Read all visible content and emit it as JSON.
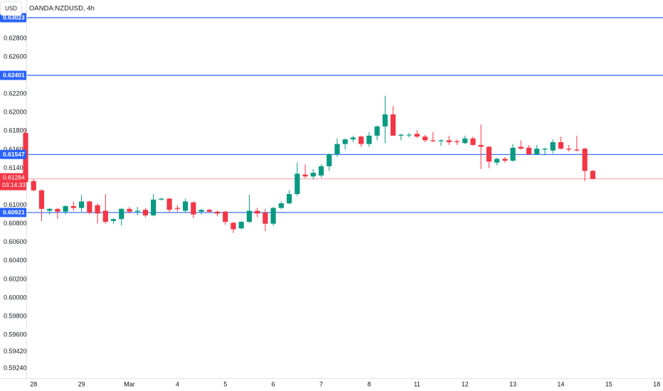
{
  "chart_data": {
    "type": "candlestick",
    "title": "OANDA:NZDUSD, 4h",
    "currency": "USD",
    "categories": [
      null,
      "28",
      null,
      null,
      null,
      null,
      null,
      "29",
      null,
      null,
      null,
      null,
      null,
      "Mar",
      null,
      null,
      null,
      null,
      null,
      "4",
      null,
      null,
      null,
      null,
      null,
      "5",
      null,
      null,
      null,
      null,
      null,
      "6",
      null,
      null,
      null,
      null,
      null,
      "7",
      null,
      null,
      null,
      null,
      null,
      "8",
      null,
      null,
      null,
      null,
      null,
      "11",
      null,
      null,
      null,
      null,
      null,
      "12",
      null,
      null,
      null,
      null,
      null,
      "13",
      null,
      null,
      null,
      null,
      null,
      "14",
      null,
      null,
      null,
      null,
      null,
      "15",
      null,
      null,
      null,
      null,
      null,
      "18"
    ],
    "open": [
      0.6178,
      0.6126,
      0.6116,
      0.6094,
      0.6096,
      0.6093,
      0.6099,
      0.6097,
      0.6104,
      0.61,
      0.6094,
      0.6083,
      0.6085,
      0.6096,
      0.6093,
      0.6095,
      0.6089,
      0.6106,
      0.6107,
      0.6097,
      0.6094,
      0.6103,
      0.6093,
      0.6095,
      0.6093,
      0.6093,
      0.6081,
      0.6075,
      0.6082,
      0.6094,
      0.6092,
      0.608,
      0.6097,
      0.6102,
      0.6112,
      0.6133,
      0.6131,
      0.6132,
      0.6142,
      0.6155,
      0.6166,
      0.6171,
      0.6174,
      0.6166,
      0.6175,
      0.6185,
      0.6198,
      0.6175,
      0.6176,
      0.6177,
      0.6174,
      0.617,
      0.6169,
      0.617,
      0.6169,
      0.6167,
      0.6172,
      0.6165,
      0.6163,
      0.6146,
      0.615,
      0.6148,
      0.6163,
      0.6162,
      0.6155,
      0.616,
      0.6159,
      0.6168,
      0.6161,
      0.616,
      0.6161,
      0.6137,
      null,
      null,
      null,
      null,
      null,
      null,
      null,
      null
    ],
    "high": [
      0.6182,
      0.6128,
      0.6117,
      0.6097,
      0.6097,
      0.61,
      0.6104,
      0.6111,
      0.6105,
      0.6102,
      0.6112,
      0.6086,
      0.6097,
      0.6098,
      0.6098,
      0.6097,
      0.6112,
      0.6108,
      0.6108,
      0.61,
      0.6107,
      0.6104,
      0.6096,
      0.6096,
      0.6094,
      0.6094,
      0.6082,
      0.6083,
      0.6111,
      0.6097,
      0.6096,
      0.6098,
      0.6104,
      0.6116,
      0.6146,
      0.6144,
      0.6139,
      0.6144,
      0.6156,
      0.6172,
      0.6172,
      0.6175,
      0.6175,
      0.6179,
      0.6186,
      0.6218,
      0.6207,
      0.6177,
      0.6178,
      0.6181,
      0.6176,
      0.6179,
      0.6171,
      0.6175,
      0.6171,
      0.6175,
      0.6174,
      0.6187,
      0.6164,
      0.6151,
      0.6152,
      0.6166,
      0.617,
      0.6165,
      0.6165,
      0.6162,
      0.6171,
      0.6174,
      0.6165,
      0.6175,
      0.6162,
      0.6138,
      null,
      null,
      null,
      null,
      null,
      null,
      null,
      null
    ],
    "low": [
      0.6123,
      0.6115,
      0.6083,
      0.609,
      0.6085,
      0.609,
      0.6094,
      0.6093,
      0.609,
      0.608,
      0.608,
      0.608,
      0.6078,
      0.6091,
      0.6089,
      0.6087,
      0.6088,
      0.6105,
      0.6092,
      0.6093,
      0.6092,
      0.6086,
      0.609,
      0.6092,
      0.6088,
      0.6079,
      0.607,
      0.6074,
      0.6081,
      0.6087,
      0.6072,
      0.6078,
      0.6096,
      0.6101,
      0.611,
      0.6129,
      0.6128,
      0.613,
      0.6137,
      0.6152,
      0.616,
      0.6168,
      0.6163,
      0.6163,
      0.617,
      0.6167,
      0.6177,
      0.617,
      0.6173,
      0.6172,
      0.6168,
      0.6168,
      0.6164,
      0.6165,
      0.6165,
      0.6166,
      0.6164,
      0.6139,
      0.614,
      0.6143,
      0.6146,
      0.6147,
      0.616,
      0.6154,
      0.6154,
      0.6154,
      0.6156,
      0.616,
      0.6158,
      0.6158,
      0.6126,
      0.6128,
      null,
      null,
      null,
      null,
      null,
      null,
      null,
      null
    ],
    "close": [
      0.6125,
      0.6116,
      0.6096,
      0.6096,
      0.6093,
      0.6099,
      0.6097,
      0.6104,
      0.6092,
      0.6091,
      0.6082,
      0.6085,
      0.6096,
      0.6093,
      0.6094,
      0.6089,
      0.6106,
      0.6107,
      0.6095,
      0.6096,
      0.6104,
      0.609,
      0.6095,
      0.6093,
      0.6091,
      0.6082,
      0.6074,
      0.6082,
      0.6094,
      0.6091,
      0.608,
      0.6097,
      0.6102,
      0.6112,
      0.6134,
      0.6131,
      0.6135,
      0.6142,
      0.6155,
      0.6166,
      0.6171,
      0.6173,
      0.6166,
      0.6175,
      0.6185,
      0.6198,
      0.6175,
      0.6176,
      0.6176,
      0.6174,
      0.617,
      0.6169,
      0.617,
      0.6168,
      0.6168,
      0.6172,
      0.6165,
      0.6163,
      0.6147,
      0.615,
      0.6148,
      0.6162,
      0.6161,
      0.6155,
      0.6161,
      0.6161,
      0.6168,
      0.6161,
      0.616,
      0.6159,
      0.6137,
      0.61284,
      null,
      null,
      null,
      null,
      null,
      null,
      null,
      null
    ],
    "up_color": "#089981",
    "down_color": "#f23645",
    "ylim": [
      0.59133,
      0.63214
    ],
    "yticks": [
      {
        "value": 0.628,
        "label": "0.62800"
      },
      {
        "value": 0.626,
        "label": "0.62600"
      },
      {
        "value": 0.622,
        "label": "0.62200"
      },
      {
        "value": 0.62,
        "label": "0.62000"
      },
      {
        "value": 0.618,
        "label": "0.61800"
      },
      {
        "value": 0.616,
        "label": "0.61600"
      },
      {
        "value": 0.614,
        "label": "0.61400"
      },
      {
        "value": 0.61,
        "label": "0.61000"
      },
      {
        "value": 0.608,
        "label": "0.60800"
      },
      {
        "value": 0.606,
        "label": "0.60600"
      },
      {
        "value": 0.604,
        "label": "0.60400"
      },
      {
        "value": 0.602,
        "label": "0.60200"
      },
      {
        "value": 0.6,
        "label": "0.60000"
      },
      {
        "value": 0.598,
        "label": "0.59800"
      },
      {
        "value": 0.596,
        "label": "0.59600"
      },
      {
        "value": 0.5942,
        "label": "0.59420"
      },
      {
        "value": 0.5924,
        "label": "0.59240"
      }
    ],
    "grid": false,
    "levels": [
      0.63023,
      0.62401,
      0.61547,
      0.60921
    ],
    "level_color": "#2962ff",
    "last_price": 0.61284,
    "countdown": "03:14:33",
    "last_color": "#f23645"
  }
}
